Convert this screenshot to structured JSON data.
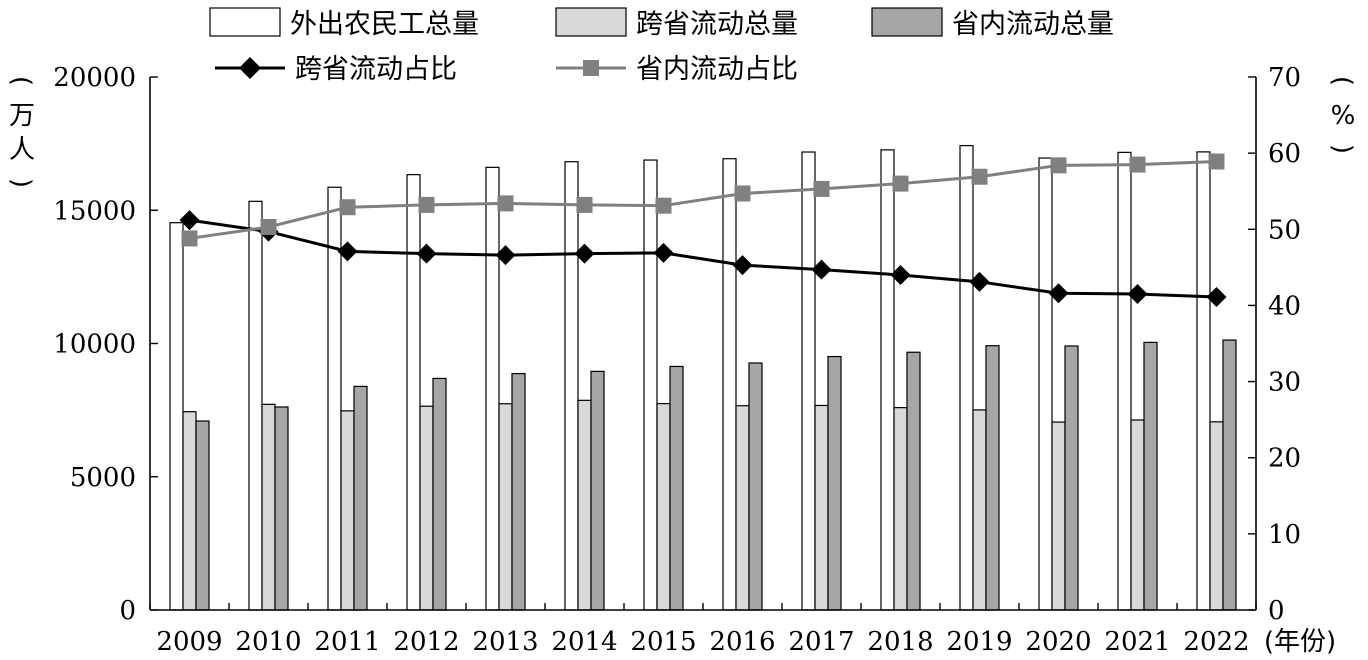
{
  "chart_data": {
    "type": "bar",
    "categories": [
      "2009",
      "2010",
      "2011",
      "2012",
      "2013",
      "2014",
      "2015",
      "2016",
      "2017",
      "2018",
      "2019",
      "2020",
      "2021",
      "2022"
    ],
    "x_unit": "(年份)",
    "left_axis": {
      "unit": "(万人)",
      "ylim": [
        0,
        20000
      ],
      "ticks": [
        0,
        5000,
        10000,
        15000,
        20000
      ]
    },
    "right_axis": {
      "unit": "(%)",
      "ylim": [
        0,
        70
      ],
      "ticks": [
        0,
        10,
        20,
        30,
        40,
        50,
        60,
        70
      ]
    },
    "bar_series": [
      {
        "name": "外出农民工总量",
        "color": "#ffffff",
        "values": [
          14533,
          15335,
          15863,
          16336,
          16610,
          16821,
          16884,
          16934,
          17185,
          17266,
          17425,
          16959,
          17172,
          17190
        ]
      },
      {
        "name": "跨省流动总量",
        "color": "#d9d9d9",
        "values": [
          7441,
          7717,
          7473,
          7647,
          7739,
          7867,
          7745,
          7666,
          7675,
          7594,
          7508,
          7052,
          7130,
          7061
        ]
      },
      {
        "name": "省内流动总量",
        "color": "#a6a6a6",
        "values": [
          7092,
          7618,
          8390,
          8689,
          8871,
          8954,
          9139,
          9268,
          9510,
          9672,
          9917,
          9907,
          10042,
          10129
        ]
      }
    ],
    "line_series": [
      {
        "name": "跨省流动占比",
        "color": "#000000",
        "marker": "diamond",
        "values": [
          51.2,
          49.7,
          47.1,
          46.8,
          46.6,
          46.8,
          46.9,
          45.3,
          44.7,
          44.0,
          43.1,
          41.6,
          41.5,
          41.1
        ]
      },
      {
        "name": "省内流动占比",
        "color": "#808080",
        "marker": "square",
        "values": [
          48.8,
          50.3,
          52.9,
          53.2,
          53.4,
          53.2,
          53.1,
          54.7,
          55.3,
          56.0,
          56.9,
          58.4,
          58.5,
          58.9
        ]
      }
    ],
    "legend_position": "top",
    "grid": false
  }
}
